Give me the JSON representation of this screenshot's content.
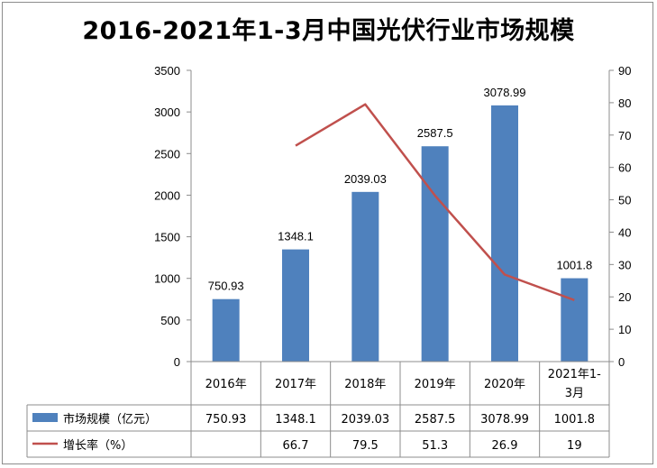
{
  "title": "2016-2021年1-3月中国光伏行业市场规模",
  "chart_data": {
    "type": "bar",
    "title": "2016-2021年1-3月中国光伏行业市场规模",
    "categories": [
      "2016年",
      "2017年",
      "2018年",
      "2019年",
      "2020年",
      "2021年1-3月"
    ],
    "category_lines": [
      [
        "2016年"
      ],
      [
        "2017年"
      ],
      [
        "2018年"
      ],
      [
        "2019年"
      ],
      [
        "2020年"
      ],
      [
        "2021年1-",
        "3月"
      ]
    ],
    "series": [
      {
        "name": "市场规模（亿元）",
        "type": "bar",
        "axis": "left",
        "color": "#4f81bd",
        "values": [
          750.93,
          1348.1,
          2039.03,
          2587.5,
          3078.99,
          1001.8
        ],
        "labels": [
          "750.93",
          "1348.1",
          "2039.03",
          "2587.5",
          "3078.99",
          "1001.8"
        ]
      },
      {
        "name": "增长率（%）",
        "type": "line",
        "axis": "right",
        "color": "#c0504d",
        "values": [
          null,
          66.7,
          79.5,
          51.3,
          26.9,
          19
        ],
        "labels": [
          "",
          "66.7",
          "79.5",
          "51.3",
          "26.9",
          "19"
        ]
      }
    ],
    "y_left": {
      "min": 0,
      "max": 3500,
      "ticks": [
        "0",
        "500",
        "1000",
        "1500",
        "2000",
        "2500",
        "3000",
        "3500"
      ]
    },
    "y_right": {
      "min": 0,
      "max": 90,
      "ticks": [
        "0",
        "10",
        "20",
        "30",
        "40",
        "50",
        "60",
        "70",
        "80",
        "90"
      ]
    },
    "grid": false,
    "legend": "data-table"
  }
}
